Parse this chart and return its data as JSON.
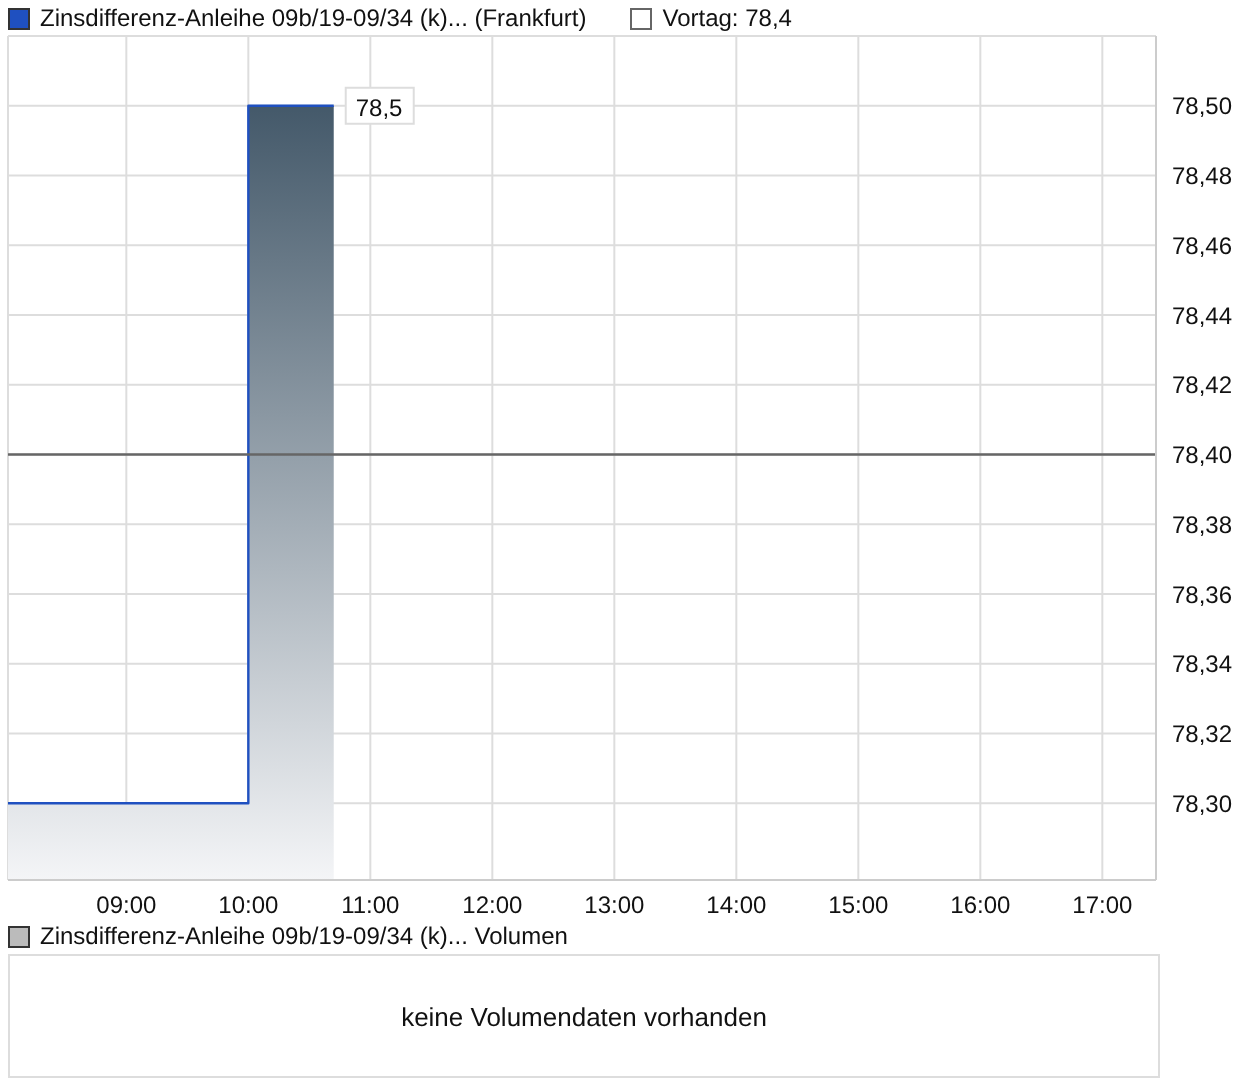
{
  "chart_data": {
    "type": "step",
    "series": [
      {
        "name": "Zinsdifferenz-Anleihe 09b/19-09/34 (k)... (Frankfurt)",
        "color": "#1f50c0",
        "x": [
          8.03,
          10,
          10.7
        ],
        "values": [
          78.3,
          78.5,
          78.5
        ]
      }
    ],
    "xlim": [
      8.03,
      17.44
    ],
    "xticks": [
      {
        "value": 9,
        "label": "09:00"
      },
      {
        "value": 10,
        "label": "10:00"
      },
      {
        "value": 11,
        "label": "11:00"
      },
      {
        "value": 12,
        "label": "12:00"
      },
      {
        "value": 13,
        "label": "13:00"
      },
      {
        "value": 14,
        "label": "14:00"
      },
      {
        "value": 15,
        "label": "15:00"
      },
      {
        "value": 16,
        "label": "16:00"
      },
      {
        "value": 17,
        "label": "17:00"
      }
    ],
    "ylim": [
      78.278,
      78.52
    ],
    "yticks": [
      {
        "value": 78.3,
        "label": "78,30"
      },
      {
        "value": 78.32,
        "label": "78,32"
      },
      {
        "value": 78.34,
        "label": "78,34"
      },
      {
        "value": 78.36,
        "label": "78,36"
      },
      {
        "value": 78.38,
        "label": "78,38"
      },
      {
        "value": 78.4,
        "label": "78,40"
      },
      {
        "value": 78.42,
        "label": "78,42"
      },
      {
        "value": 78.44,
        "label": "78,44"
      },
      {
        "value": 78.46,
        "label": "78,46"
      },
      {
        "value": 78.48,
        "label": "78,48"
      },
      {
        "value": 78.5,
        "label": "78,50"
      }
    ],
    "ref_lines": [
      {
        "axis": "y",
        "value": 78.4,
        "label": "Vortag: 78,4",
        "color": "#666666"
      }
    ],
    "annotations": [
      {
        "text": "78,5",
        "x": 10.7,
        "y": 78.5
      },
      "Zinsdifferenz-Anleihe 09b/19-09/34 (k)... Volumen",
      "keine Volumendaten vorhanden"
    ],
    "grid": true,
    "legend": "top left"
  }
}
